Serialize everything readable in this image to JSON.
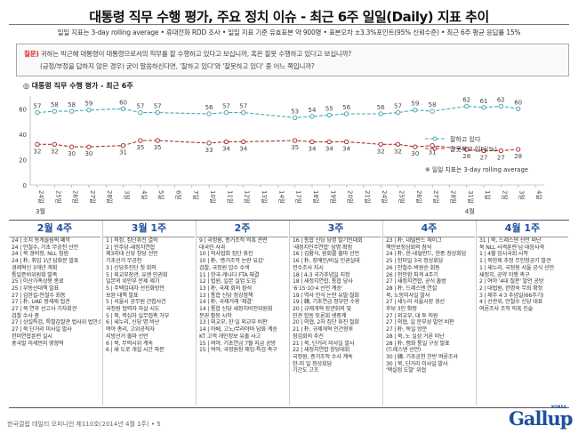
{
  "header": {
    "title": "대통령 직무 수행 평가, 주요 정치 이슈 - 최근 6주 일일(Daily) 지표 추이",
    "note": "일일 지표는 3-day rolling average • 휴대전화 RDD 조사 • 일일 지표 기준 유효표본 약 900명 • 표본오차 ±3.3%포인트(95% 신뢰수준) • 최근 6주 평균 응답률 15%"
  },
  "question": {
    "label": "질문)",
    "line1": "귀하는 박근혜 대통령이 대통령으로서의 직무를 잘 수행하고 있다고 보십니까, 혹은 잘못 수행하고 있다고 보십니까?",
    "line2": "(긍정/부정을 답하지 않은 경우) 굳이 말씀하신다면, '잘하고 있다'와 '잘못하고 있다' 중 어느 쪽입니까?"
  },
  "chart_data": {
    "type": "line",
    "title": "대통령 직무 수행 평가 - 최근 6주",
    "xlabel": "",
    "ylabel": "",
    "y_ticks": [
      "0",
      "20",
      "40",
      "60"
    ],
    "ylim": [
      0,
      70
    ],
    "x": [
      "24일",
      "25일",
      "26일",
      "27일",
      "28일",
      "3일",
      "4일",
      "5일",
      "6일",
      "7일",
      "10일",
      "11일",
      "12일",
      "13일",
      "14일",
      "17일",
      "18일",
      "19일",
      "20일",
      "21일",
      "24일",
      "25일",
      "26일",
      "27일",
      "28일",
      "31일",
      "1일",
      "2일",
      "3일",
      "4일"
    ],
    "month_labels": [
      {
        "text": "3월",
        "at": "24일"
      },
      {
        "text": "4월",
        "at": "31일"
      }
    ],
    "series": [
      {
        "name": "잘하고 있다",
        "color": "#4aa8b5",
        "values": [
          57,
          58,
          58,
          59,
          null,
          60,
          57,
          57,
          null,
          null,
          56,
          57,
          57,
          null,
          null,
          53,
          54,
          55,
          56,
          null,
          56,
          57,
          59,
          58,
          null,
          62,
          61,
          62,
          60,
          null
        ],
        "labels": [
          "57",
          "58",
          "58",
          "59",
          "",
          "60",
          "57",
          "57",
          "",
          "",
          "56",
          "57",
          "57",
          "",
          "",
          "53",
          "54",
          "55",
          "56",
          "",
          "56",
          "57",
          "59",
          "58",
          "",
          "62",
          "61",
          "62",
          "60",
          ""
        ]
      },
      {
        "name": "잘못하고 있다(%)",
        "color": "#b03030",
        "values": [
          32,
          32,
          30,
          30,
          null,
          31,
          35,
          35,
          null,
          null,
          33,
          34,
          34,
          null,
          null,
          35,
          34,
          34,
          34,
          null,
          32,
          32,
          30,
          31,
          null,
          28,
          27,
          27,
          28,
          null
        ],
        "labels": [
          "32",
          "32",
          "30",
          "30",
          "",
          "31",
          "35",
          "35",
          "",
          "",
          "33",
          "34",
          "34",
          "",
          "",
          "35",
          "34",
          "34",
          "34",
          "",
          "32",
          "32",
          "30",
          "31",
          "",
          "28",
          "27",
          "27",
          "28",
          ""
        ]
      }
    ],
    "legend": {
      "placement": "right",
      "extra": "일일 지표는 3-day rolling average"
    },
    "grid": false
  },
  "weeks": [
    {
      "title": "2월 4주",
      "events": [
        "24 | 소치 동계올림픽 폐막",
        "24 | 안철수, 기초 무공천 선언",
        "24 | 북 경비정, NLL 침범",
        "24 | 朴, 취임 1년 담화문 발표",
        "      경제혁신 3개년 계획",
        "      통일준비위원회 발족",
        "25 | 이산가족상봉 종료",
        "25 | 부동산대책 발표",
        "27 | 김한길-안철수 회동",
        "27 | 朴, UAE 왕세제 접견",
        "27 | 북 연후 선고사 기자회견",
        "      검찰 수사 중",
        "27 | 상설특검, 특별감찰관 법사위 법안소위 통과",
        "27 | 북 단거리 미사일 발사",
        "      한미연합훈련 실시",
        "      중국발 미세먼지 영향력"
      ]
    },
    {
      "title": "3월 1주",
      "events": [
        "1 | 의정, 집단휴진 결의",
        "2 | 민주당-새정치연합",
        "      제3지대 신당 창당 선언",
        "      기초선거 무공천",
        "3 | 신당추진단 첫 회의",
        "5 | 외교부장관, 유엔 인권회",
        "      일본의 위안부 문제 제기",
        "5 | 주택임대차 선진화방안",
        "      보완 대책 발표",
        "5 | 서울시 공무원 간첩사건",
        "      국정원 협력자 자살 시도",
        "5 | 북, 적십자 실무접촉 거부",
        "6 | 새누리, 신당 명 비난",
        "      여야 총리, 고위공직자",
        "      지방선거 출마 선언",
        "6 | 북, 무력시위 계속",
        "6 | 새 도로 개설 시간 파문"
      ]
    },
    {
      "title": "2주",
      "events": [
        "9 | 국정원, 증거조작 의혹 관련",
        "      대국민 사과",
        "10 | 의사협회 집단 휴진",
        "10 | 朴, '증거조작 논란 유감'",
        "      검찰, 국정원 압수 수색",
        "11 | 한국-캐나다 FTA 체결",
        "12 | 법원, 일본 실업 도입",
        "13 | 朴, 국제 회의 참석",
        "13 | 통합 신당 정강정책",
        "14 | 朴, 국제거래 '체결'",
        "14 | 통합 신당 새정치비전위원회",
        "      분권 활동 시작",
        "13 | 외교부, 한·일 외교부 비판",
        "14 | 아베, 고노/무라야마 담화 계승",
        "      KT 고객 개인정보 유출 사고",
        "15 | 여야, 기초연금 7월 지급 공방",
        "15 | 여야, 국정원장 해임·특검 촉구"
      ]
    },
    {
      "title": "3주",
      "events": [
        "16 | 통합 신당 당명 발기인대회",
        "      '새정치민주연합' 당명 확정",
        "16 | 김황식, 원회를 출마 선언",
        "16 | 朴, 장애인/비실 인권실태",
        "      전수조사 지시",
        "18 | 4-3 국가추념일 지정",
        "18 | 새정치연합, 통합 당사",
        "      '6·15·10·4 선언 계승'",
        "19 | 역사 인식 논란 유발·철회",
        "19 | 韓, 기초연금 정부안 수용",
        "20 | 규제개혁 장관회의 및",
        "      민관 합동 토론회 생중계",
        "20 | 의협, 2차 집단 휴진 철회",
        "21 | 朴, 규제개혁 인간향후",
        "      점검회의 추진",
        "21 | 북, 단거리 미사일 발사",
        "22 | 새정치연합 창당대회",
        "      국정원, 증거조작 수사 계속",
        "      한-미 일 정상회담",
        "      기간도 고조"
      ]
    },
    {
      "title": "4주",
      "events": [
        "23 | 朴, 네덜란드 헤이그",
        "      핵안보정상회의 참석",
        "24 | 朴, 한-네덜란드, 한중 정상회담",
        "25 | 한미일 3국 정상회담",
        "26 | 안철수-박원순 회동",
        "26 | 천안함 피격 4주기",
        "27 | 새정치연합, 공식 출범",
        "28 | 朴, 드레스덴 연설",
        "      북, 노동미사일 발사",
        "27 | 새누리 서울시장 경선",
        "      후보 3인 확정",
        "27 | 외교부, 대 투 의원",
        "27 | 의협, 일 문부성 발언 비판",
        "27 | 朴, 독일 방문",
        "28 | 북, 노 실성 거론 비난",
        "28 | 朴, 평화 통일 구상 발표",
        "      (드레스덴 선언)",
        "30 | 韓, 기초공천 찬반 여론조사",
        "30 | 북, 단거리 미사일 발사",
        "      '핵실험 도발' 위협"
      ]
    },
    {
      "title": "4월 1주",
      "events": [
        "31 | 북, 드레스덴 선언 비난",
        "      북 NLL 사격훈련·남 대응사격",
        "1 | 4월 임시국회 시작",
        "1 | 북한제 추정 무인항공기 발견",
        "1 | 새누리, 국정원 서울 공식 선언",
        "      새정치, 공약 이행 촉구",
        "2 | 여야 '4대 질문' 발언 공방",
        "2 | 대법원, 한명숙 무죄 확정",
        "3 | 제주 4·3 추념일(66주기)",
        "4 | 선관위, 안철수 신당 대표",
        "      여론조사 조작 의혹 진술"
      ]
    }
  ],
  "footer": {
    "text": "한국갤럽 데일리 오피니언 제110호(2014년 4월 1주) • 5",
    "logo_main": "Gallup",
    "logo_korea": "KOREA"
  }
}
